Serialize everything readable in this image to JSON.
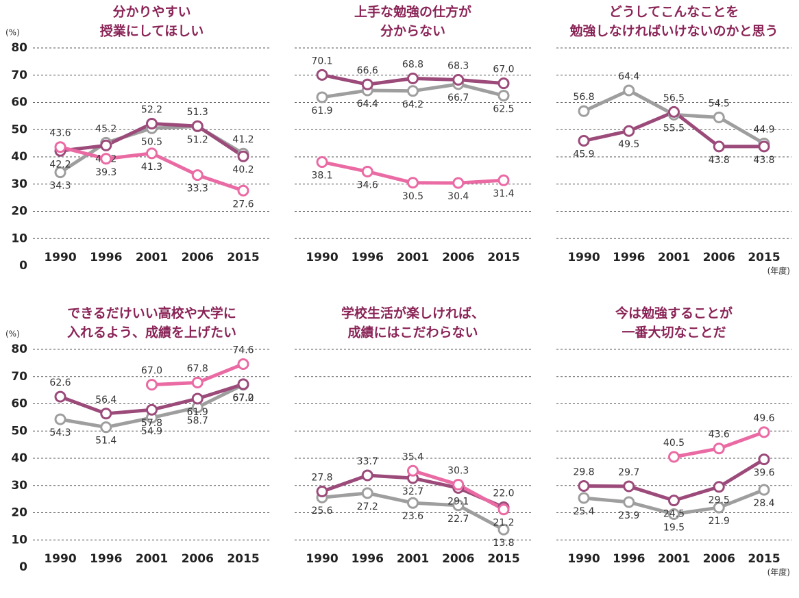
{
  "chart_data": [
    {
      "type": "line",
      "title": [
        "分かりやすい",
        "授業にしてほしい"
      ],
      "y_label": "(%)",
      "categories": [
        "1990",
        "1996",
        "2001",
        "2006",
        "2015"
      ],
      "ylim": [
        0,
        80
      ],
      "yticks": [
        0,
        10,
        20,
        30,
        40,
        50,
        60,
        70,
        80
      ],
      "series": [
        {
          "color": "#9e9e9e",
          "values": [
            34.3,
            45.2,
            50.5,
            51.2,
            41.2
          ],
          "value_labels": [
            "34.3",
            "45.2",
            "50.5",
            "51.2",
            "41.2"
          ]
        },
        {
          "color": "#9b4a7a",
          "values": [
            42.2,
            44.2,
            52.2,
            51.3,
            40.2
          ],
          "value_labels": [
            "42.2",
            "44.2",
            "52.2",
            "51.3",
            "40.2"
          ]
        },
        {
          "color": "#ea6aa4",
          "values": [
            43.6,
            39.3,
            41.3,
            33.3,
            27.6
          ],
          "value_labels": [
            "43.6",
            "39.3",
            "41.3",
            "33.3",
            "27.6"
          ]
        }
      ]
    },
    {
      "type": "line",
      "title": [
        "上手な勉強の仕方が",
        "分からない"
      ],
      "categories": [
        "1990",
        "1996",
        "2001",
        "2006",
        "2015"
      ],
      "ylim": [
        0,
        80
      ],
      "yticks": [
        0,
        10,
        20,
        30,
        40,
        50,
        60,
        70,
        80
      ],
      "series": [
        {
          "color": "#9e9e9e",
          "values": [
            61.9,
            64.4,
            64.2,
            66.7,
            62.5
          ],
          "value_labels": [
            "61.9",
            "64.4",
            "64.2",
            "66.7",
            "62.5"
          ]
        },
        {
          "color": "#9b4a7a",
          "values": [
            70.1,
            66.6,
            68.8,
            68.3,
            67.0
          ],
          "value_labels": [
            "70.1",
            "66.6",
            "68.8",
            "68.3",
            "67.0"
          ]
        },
        {
          "color": "#ea6aa4",
          "values": [
            38.1,
            34.6,
            30.5,
            30.4,
            31.4
          ],
          "value_labels": [
            "38.1",
            "34.6",
            "30.5",
            "30.4",
            "31.4"
          ]
        }
      ]
    },
    {
      "type": "line",
      "title": [
        "どうしてこんなことを",
        "勉強しなければいけないのかと思う"
      ],
      "x_label": "(年度)",
      "categories": [
        "1990",
        "1996",
        "2001",
        "2006",
        "2015"
      ],
      "ylim": [
        0,
        80
      ],
      "yticks": [
        0,
        10,
        20,
        30,
        40,
        50,
        60,
        70,
        80
      ],
      "series": [
        {
          "color": "#9e9e9e",
          "values": [
            56.8,
            64.4,
            55.5,
            54.5,
            44.9
          ],
          "value_labels": [
            "56.8",
            "64.4",
            "55.5",
            "54.5",
            "44.9"
          ]
        },
        {
          "color": "#9b4a7a",
          "values": [
            45.9,
            49.5,
            56.5,
            43.8,
            43.8
          ],
          "value_labels": [
            "45.9",
            "49.5",
            "56.5",
            "43.8",
            "43.8"
          ]
        }
      ]
    },
    {
      "type": "line",
      "title": [
        "できるだけいい高校や大学に",
        "入れるよう、成績を上げたい"
      ],
      "y_label": "(%)",
      "categories": [
        "1990",
        "1996",
        "2001",
        "2006",
        "2015"
      ],
      "ylim": [
        0,
        80
      ],
      "yticks": [
        0,
        10,
        20,
        30,
        40,
        50,
        60,
        70,
        80
      ],
      "series": [
        {
          "color": "#9e9e9e",
          "values": [
            54.3,
            51.4,
            54.9,
            58.7,
            67.0
          ],
          "value_labels": [
            "54.3",
            "51.4",
            "54.9",
            "58.7",
            "67.0"
          ]
        },
        {
          "color": "#9b4a7a",
          "values": [
            62.6,
            56.4,
            57.8,
            61.9,
            67.2
          ],
          "value_labels": [
            "62.6",
            "56.4",
            "57.8",
            "61.9",
            "67.2"
          ]
        },
        {
          "color": "#ea6aa4",
          "values": [
            null,
            null,
            67.0,
            67.8,
            74.6
          ],
          "value_labels": [
            null,
            null,
            "67.0",
            "67.8",
            "74.6"
          ]
        }
      ]
    },
    {
      "type": "line",
      "title": [
        "学校生活が楽しければ、",
        "成績にはこだわらない"
      ],
      "categories": [
        "1990",
        "1996",
        "2001",
        "2006",
        "2015"
      ],
      "ylim": [
        0,
        80
      ],
      "yticks": [
        0,
        10,
        20,
        30,
        40,
        50,
        60,
        70,
        80
      ],
      "series": [
        {
          "color": "#9e9e9e",
          "values": [
            25.6,
            27.2,
            23.6,
            22.7,
            13.8
          ],
          "value_labels": [
            "25.6",
            "27.2",
            "23.6",
            "22.7",
            "13.8"
          ]
        },
        {
          "color": "#9b4a7a",
          "values": [
            27.8,
            33.7,
            32.7,
            29.1,
            22.0
          ],
          "value_labels": [
            "27.8",
            "33.7",
            "32.7",
            "29.1",
            "22.0"
          ]
        },
        {
          "color": "#ea6aa4",
          "values": [
            null,
            null,
            35.4,
            30.3,
            21.2
          ],
          "value_labels": [
            null,
            null,
            "35.4",
            "30.3",
            "21.2"
          ]
        }
      ]
    },
    {
      "type": "line",
      "title": [
        "今は勉強することが",
        "一番大切なことだ"
      ],
      "x_label": "(年度)",
      "categories": [
        "1990",
        "1996",
        "2001",
        "2006",
        "2015"
      ],
      "ylim": [
        0,
        80
      ],
      "yticks": [
        0,
        10,
        20,
        30,
        40,
        50,
        60,
        70,
        80
      ],
      "series": [
        {
          "color": "#9e9e9e",
          "values": [
            25.4,
            23.9,
            19.5,
            21.9,
            28.4
          ],
          "value_labels": [
            "25.4",
            "23.9",
            "19.5",
            "21.9",
            "28.4"
          ]
        },
        {
          "color": "#9b4a7a",
          "values": [
            29.8,
            29.7,
            24.5,
            29.5,
            39.6
          ],
          "value_labels": [
            "29.8",
            "29.7",
            "24.5",
            "29.5",
            "39.6"
          ]
        },
        {
          "color": "#ea6aa4",
          "values": [
            null,
            null,
            40.5,
            43.6,
            49.6
          ],
          "value_labels": [
            null,
            null,
            "40.5",
            "43.6",
            "49.6"
          ]
        }
      ]
    }
  ]
}
